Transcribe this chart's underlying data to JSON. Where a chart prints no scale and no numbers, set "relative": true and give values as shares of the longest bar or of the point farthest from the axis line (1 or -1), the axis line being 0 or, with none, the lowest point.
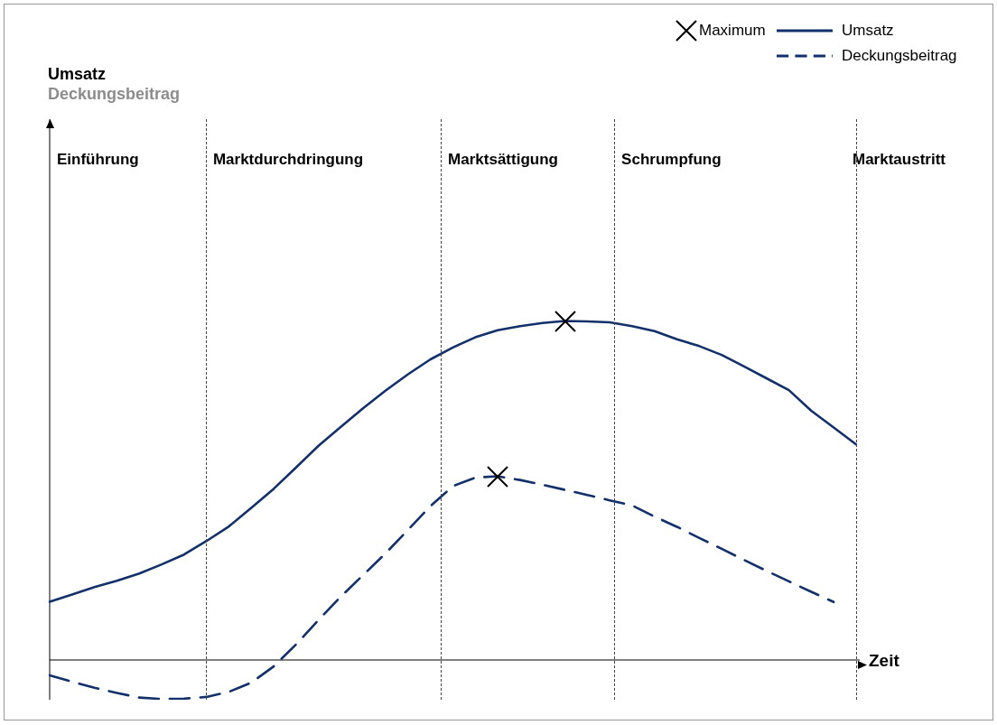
{
  "chart_data": {
    "type": "line",
    "relative": true,
    "xlabel": "Zeit",
    "categories": [
      null,
      null,
      null,
      null,
      null,
      null,
      null,
      null,
      null,
      null,
      null,
      null,
      null,
      null,
      null,
      null,
      null,
      null,
      null,
      null,
      null,
      null,
      null,
      null,
      null,
      null,
      null,
      null,
      null,
      null,
      null,
      null,
      null,
      null,
      null,
      null,
      null
    ],
    "legend": "top right",
    "annotations": [
      "Einführung",
      "Marktdurchdringung",
      "Marktsättigung",
      "Schrumpfung",
      "Marktaustritt",
      "Maximum",
      "Umsatz",
      "Deckungsbeitrag"
    ],
    "series": [
      {
        "name": "Umsatz",
        "color": "#14306a",
        "line_style": "solid",
        "values": [
          0.172,
          0.193,
          0.215,
          0.234,
          0.255,
          0.282,
          0.311,
          0.351,
          0.394,
          0.449,
          0.505,
          0.568,
          0.632,
          0.688,
          0.743,
          0.795,
          0.843,
          0.887,
          0.922,
          0.952,
          0.973,
          0.985,
          0.994,
          1,
          0.999,
          0.996,
          0.985,
          0.97,
          0.946,
          0.926,
          0.9,
          0.866,
          0.831,
          0.796,
          0.735,
          0.686,
          0.636
        ]
      },
      {
        "name": "Deckungsbeitrag",
        "color": "#14306a",
        "line_style": "dashed",
        "values": [
          -0.045,
          -0.064,
          -0.082,
          -0.097,
          -0.111,
          -0.115,
          -0.114,
          -0.109,
          -0.094,
          -0.067,
          -0.019,
          0.046,
          0.118,
          0.187,
          0.251,
          0.315,
          0.384,
          0.454,
          0.513,
          0.538,
          0.542,
          0.531,
          0.517,
          0.502,
          0.487,
          0.471,
          0.456,
          0.423,
          0.393,
          0.36,
          0.328,
          0.295,
          0.263,
          0.232,
          0.201,
          0.171,
          null
        ]
      }
    ]
  }
}
